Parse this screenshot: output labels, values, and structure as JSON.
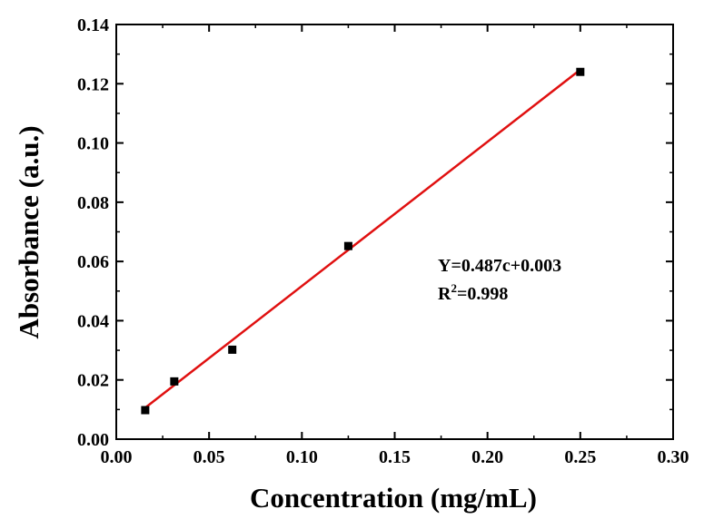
{
  "chart_data": {
    "type": "scatter",
    "xlabel": "Concentration (mg/mL)",
    "ylabel": "Absorbance (a.u.)",
    "xlim": [
      0.0,
      0.3
    ],
    "ylim": [
      0.0,
      0.14
    ],
    "x_ticks": [
      "0.00",
      "0.05",
      "0.10",
      "0.15",
      "0.20",
      "0.25",
      "0.30"
    ],
    "y_ticks": [
      "0.00",
      "0.02",
      "0.04",
      "0.06",
      "0.08",
      "0.10",
      "0.12",
      "0.14"
    ],
    "grid": false,
    "series": [
      {
        "kind": "points",
        "marker": "square",
        "color": "#000000",
        "x": [
          0.0156,
          0.03125,
          0.0625,
          0.125,
          0.25
        ],
        "y": [
          0.0098,
          0.0195,
          0.0302,
          0.0652,
          0.124
        ]
      },
      {
        "kind": "fit-line",
        "color": "#e01010",
        "slope": 0.487,
        "intercept": 0.003,
        "x_range": [
          0.0156,
          0.25
        ]
      }
    ],
    "annotations": {
      "equation": "Y=0.487c+0.003",
      "r2_prefix": "R",
      "r2_sup": "2",
      "r2_value": "=0.998"
    }
  }
}
